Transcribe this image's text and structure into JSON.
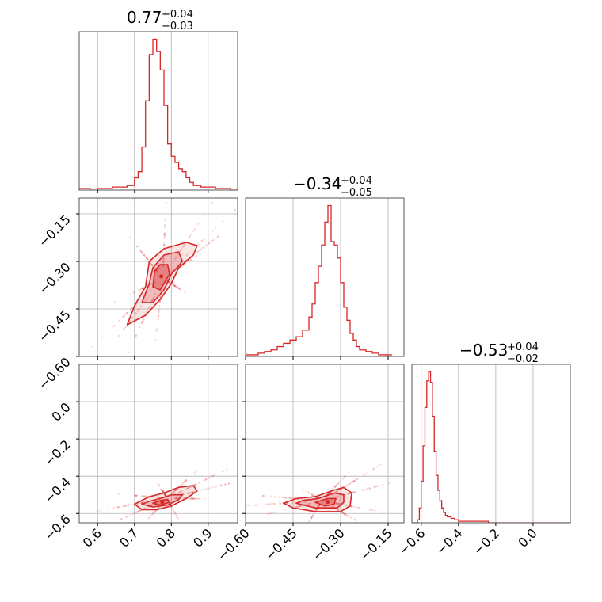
{
  "chart_data": {
    "type": "corner",
    "color": "#d62728",
    "grid": true,
    "parameters": [
      {
        "median": 0.77,
        "plus": "0.04",
        "minus": "0.03",
        "title_main": "0.77",
        "title_plus": "+0.04",
        "title_minus": "−0.03",
        "range": [
          0.55,
          0.98
        ],
        "ticks": [
          0.6,
          0.7,
          0.8,
          0.9
        ],
        "tick_labels": [
          "0.6",
          "0.7",
          "0.8",
          "0.9"
        ]
      },
      {
        "median": -0.34,
        "plus": "0.04",
        "minus": "0.05",
        "title_main": "−0.34",
        "title_plus": "+0.04",
        "title_minus": "−0.05",
        "range": [
          -0.6,
          -0.1
        ],
        "ticks": [
          -0.6,
          -0.45,
          -0.3,
          -0.15
        ],
        "tick_labels": [
          "−0.60",
          "−0.45",
          "−0.30",
          "−0.15"
        ]
      },
      {
        "median": -0.53,
        "plus": "0.04",
        "minus": "0.02",
        "title_main": "−0.53",
        "title_plus": "+0.04",
        "title_minus": "−0.02",
        "range": [
          -0.65,
          0.2
        ],
        "ticks": [
          -0.6,
          -0.4,
          -0.2,
          0.0
        ],
        "tick_labels": [
          "−0.6",
          "−0.4",
          "−0.2",
          "0.0"
        ]
      }
    ],
    "histograms": [
      {
        "x": [
          0.56,
          0.58,
          0.6,
          0.62,
          0.64,
          0.66,
          0.68,
          0.7,
          0.71,
          0.72,
          0.73,
          0.74,
          0.75,
          0.76,
          0.77,
          0.78,
          0.79,
          0.8,
          0.81,
          0.82,
          0.83,
          0.84,
          0.85,
          0.86,
          0.88,
          0.9,
          0.92,
          0.94,
          0.96
        ],
        "y": [
          1,
          0,
          1,
          1,
          2,
          2,
          3,
          8,
          12,
          28,
          58,
          88,
          98,
          90,
          78,
          55,
          30,
          22,
          18,
          14,
          12,
          8,
          5,
          3,
          2,
          2,
          1,
          1,
          0
        ]
      },
      {
        "x": [
          -0.58,
          -0.56,
          -0.54,
          -0.52,
          -0.5,
          -0.48,
          -0.46,
          -0.44,
          -0.42,
          -0.4,
          -0.39,
          -0.38,
          -0.37,
          -0.36,
          -0.35,
          -0.34,
          -0.33,
          -0.32,
          -0.31,
          -0.3,
          -0.29,
          -0.28,
          -0.27,
          -0.26,
          -0.25,
          -0.24,
          -0.22,
          -0.2,
          -0.18,
          -0.16,
          -0.14
        ],
        "y": [
          1,
          2,
          3,
          4,
          6,
          8,
          10,
          12,
          16,
          24,
          32,
          45,
          55,
          68,
          82,
          92,
          70,
          68,
          60,
          45,
          30,
          22,
          14,
          10,
          6,
          4,
          3,
          2,
          1,
          1,
          0
        ]
      },
      {
        "x": [
          -0.63,
          -0.62,
          -0.61,
          -0.6,
          -0.59,
          -0.58,
          -0.57,
          -0.56,
          -0.55,
          -0.54,
          -0.53,
          -0.52,
          -0.51,
          -0.5,
          -0.49,
          -0.48,
          -0.47,
          -0.46,
          -0.44,
          -0.42,
          -0.4,
          -0.36,
          -0.32,
          -0.28,
          -0.24,
          -0.2
        ],
        "y": [
          0,
          2,
          10,
          28,
          52,
          78,
          96,
          102,
          95,
          72,
          48,
          32,
          22,
          15,
          10,
          7,
          5,
          4,
          3,
          2,
          1,
          1,
          1,
          1,
          0,
          0
        ]
      }
    ],
    "pairs": [
      {
        "row": 1,
        "col": 0,
        "contours": [
          {
            "level": 1,
            "pts": [
              [
                0.68,
                -0.5
              ],
              [
                0.7,
                -0.44
              ],
              [
                0.73,
                -0.38
              ],
              [
                0.74,
                -0.3
              ],
              [
                0.78,
                -0.26
              ],
              [
                0.84,
                -0.24
              ],
              [
                0.87,
                -0.25
              ],
              [
                0.86,
                -0.28
              ],
              [
                0.82,
                -0.32
              ],
              [
                0.8,
                -0.37
              ],
              [
                0.77,
                -0.42
              ],
              [
                0.73,
                -0.47
              ]
            ]
          },
          {
            "level": 2,
            "pts": [
              [
                0.72,
                -0.43
              ],
              [
                0.74,
                -0.37
              ],
              [
                0.75,
                -0.32
              ],
              [
                0.78,
                -0.28
              ],
              [
                0.82,
                -0.27
              ],
              [
                0.83,
                -0.3
              ],
              [
                0.8,
                -0.34
              ],
              [
                0.78,
                -0.39
              ],
              [
                0.75,
                -0.43
              ]
            ]
          },
          {
            "level": 3,
            "pts": [
              [
                0.75,
                -0.38
              ],
              [
                0.755,
                -0.33
              ],
              [
                0.77,
                -0.31
              ],
              [
                0.79,
                -0.31
              ],
              [
                0.795,
                -0.34
              ],
              [
                0.78,
                -0.37
              ],
              [
                0.77,
                -0.39
              ]
            ]
          }
        ]
      },
      {
        "row": 2,
        "col": 0,
        "contours": [
          {
            "level": 1,
            "pts": [
              [
                0.7,
                -0.55
              ],
              [
                0.72,
                -0.58
              ],
              [
                0.76,
                -0.58
              ],
              [
                0.8,
                -0.56
              ],
              [
                0.84,
                -0.52
              ],
              [
                0.87,
                -0.48
              ],
              [
                0.86,
                -0.45
              ],
              [
                0.82,
                -0.46
              ],
              [
                0.78,
                -0.49
              ],
              [
                0.74,
                -0.51
              ]
            ]
          },
          {
            "level": 2,
            "pts": [
              [
                0.72,
                -0.55
              ],
              [
                0.75,
                -0.565
              ],
              [
                0.79,
                -0.555
              ],
              [
                0.82,
                -0.525
              ],
              [
                0.83,
                -0.5
              ],
              [
                0.8,
                -0.5
              ],
              [
                0.77,
                -0.52
              ],
              [
                0.74,
                -0.535
              ]
            ]
          },
          {
            "level": 3,
            "pts": [
              [
                0.75,
                -0.545
              ],
              [
                0.77,
                -0.555
              ],
              [
                0.795,
                -0.54
              ],
              [
                0.79,
                -0.525
              ],
              [
                0.77,
                -0.53
              ]
            ]
          }
        ]
      },
      {
        "row": 2,
        "col": 1,
        "contours": [
          {
            "level": 1,
            "pts": [
              [
                -0.48,
                -0.545
              ],
              [
                -0.45,
                -0.57
              ],
              [
                -0.38,
                -0.59
              ],
              [
                -0.3,
                -0.59
              ],
              [
                -0.27,
                -0.56
              ],
              [
                -0.265,
                -0.49
              ],
              [
                -0.29,
                -0.46
              ],
              [
                -0.33,
                -0.48
              ],
              [
                -0.38,
                -0.51
              ],
              [
                -0.44,
                -0.52
              ]
            ]
          },
          {
            "level": 2,
            "pts": [
              [
                -0.44,
                -0.545
              ],
              [
                -0.38,
                -0.57
              ],
              [
                -0.31,
                -0.57
              ],
              [
                -0.29,
                -0.54
              ],
              [
                -0.29,
                -0.5
              ],
              [
                -0.32,
                -0.49
              ],
              [
                -0.37,
                -0.52
              ],
              [
                -0.42,
                -0.53
              ]
            ]
          },
          {
            "level": 3,
            "pts": [
              [
                -0.38,
                -0.54
              ],
              [
                -0.35,
                -0.56
              ],
              [
                -0.32,
                -0.55
              ],
              [
                -0.315,
                -0.52
              ],
              [
                -0.34,
                -0.52
              ]
            ]
          }
        ]
      }
    ]
  }
}
